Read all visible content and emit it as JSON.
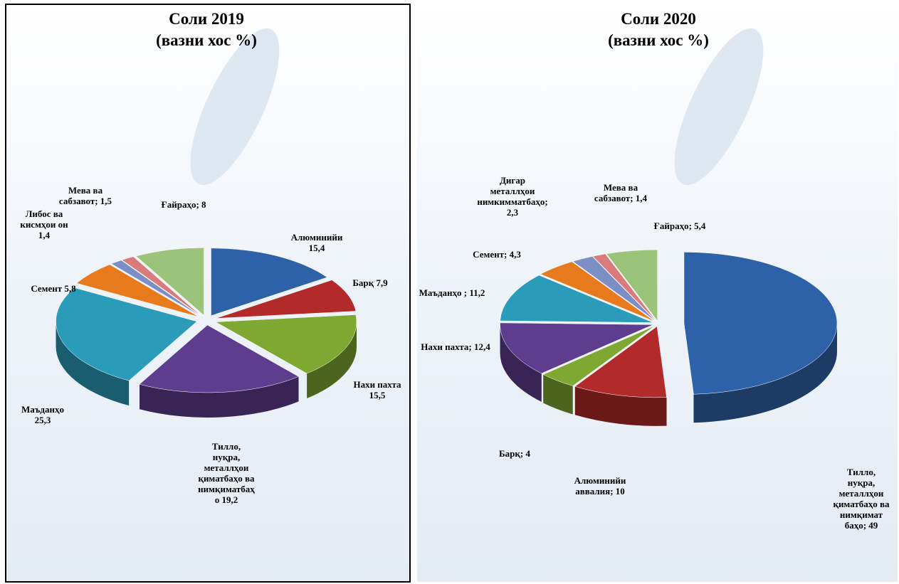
{
  "chart_data": [
    {
      "type": "pie3d",
      "title": "Соли 2019",
      "subtitle": "(вазни хос %)",
      "labels": [
        "Алюминийи\n15,4",
        "Барқ 7,9",
        "Нахи пахта\n15,5",
        "Тилло,\nнуқра,\nметаллҳои\nқиматбаҳо ва\nнимқиматбаҳ\nо 19,2",
        "Маъданҳо\n25,3",
        "Семент 5,8",
        "Либос ва\nкисмҳои он\n1,4",
        "Мева ва\nсабзавот; 1,5",
        "Ғайраҳо; 8"
      ],
      "values": [
        15.4,
        7.9,
        15.5,
        19.2,
        25.3,
        5.8,
        1.4,
        1.5,
        8
      ],
      "colors": [
        "#2e62a8",
        "#b22a2a",
        "#7fa832",
        "#5e3d8f",
        "#2a9bb8",
        "#e87a1e",
        "#7b8fc4",
        "#d97b7b",
        "#9bc47a"
      ]
    },
    {
      "type": "pie3d",
      "title": "Соли 2020",
      "subtitle": "(вазни хос %)",
      "labels": [
        "Тилло,\nнуқра,\nметаллҳои\nқиматбаҳо ва\nнимқимат\nбаҳо;  49",
        "Алюминийи\nаввалия; 10",
        "Барқ; 4",
        "Нахи пахта; 12,4",
        "Маъданҳо ; 11,2",
        "Семент; 4,3",
        "Дигар\nметаллҳои\nнимкимматбаҳо;\n2,3",
        "Мева ва\nсабзавот; 1,4",
        "Ғайраҳо; 5,4"
      ],
      "values": [
        49,
        10,
        4,
        12.4,
        11.2,
        4.3,
        2.3,
        1.4,
        5.4
      ],
      "colors": [
        "#2e62a8",
        "#b22a2a",
        "#7fa832",
        "#5e3d8f",
        "#2a9bb8",
        "#e87a1e",
        "#7b8fc4",
        "#d97b7b",
        "#9bc47a"
      ]
    }
  ]
}
